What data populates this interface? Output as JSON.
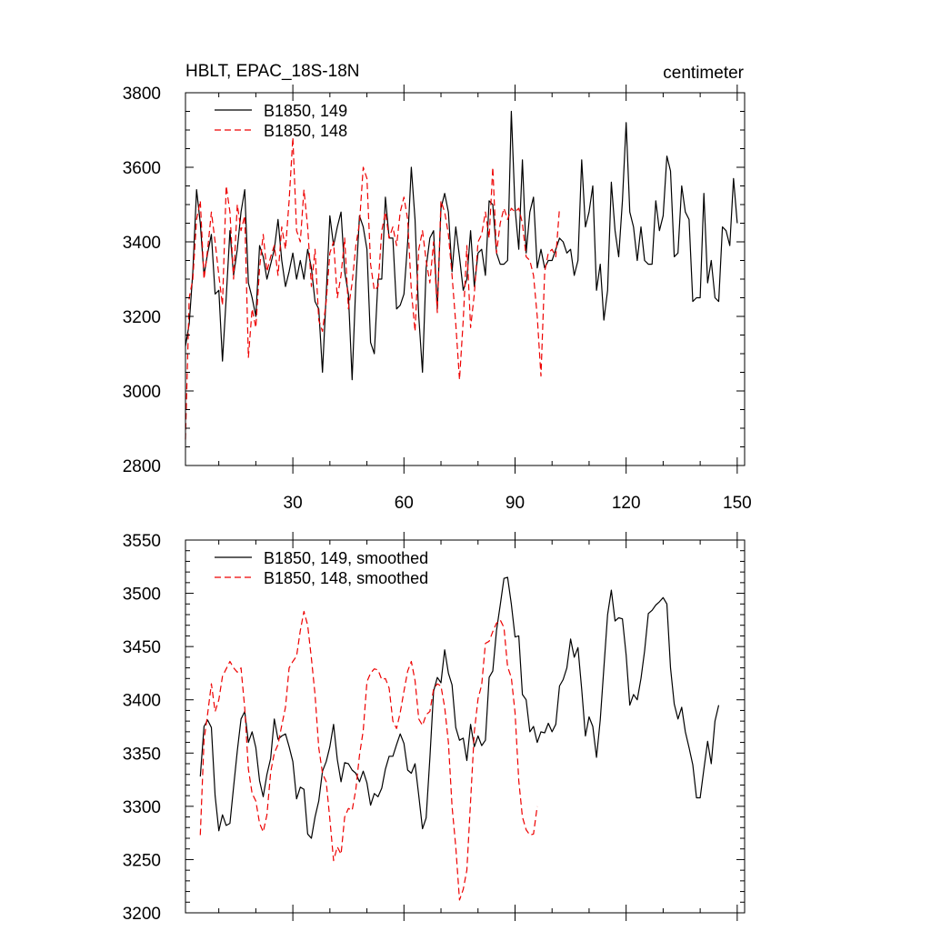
{
  "chart_data": [
    {
      "type": "line",
      "title_left": "HBLT, EPAC_18S-18N",
      "title_right": "centimeter",
      "xlim": [
        1,
        152
      ],
      "ylim": [
        2800,
        3800
      ],
      "x_ticks": [
        30,
        60,
        90,
        120,
        150
      ],
      "x_ticks_show_labels": true,
      "y_ticks": [
        2800,
        3000,
        3200,
        3400,
        3600,
        3800
      ],
      "y_minor_step": 50,
      "x_minor_step": 10,
      "legend": "top-left",
      "series": [
        {
          "name": "B1850, 149",
          "color": "#000000",
          "dash": "solid",
          "x_start": 1,
          "values": [
            3120,
            3180,
            3320,
            3540,
            3450,
            3310,
            3370,
            3420,
            3260,
            3270,
            3080,
            3250,
            3430,
            3310,
            3380,
            3480,
            3540,
            3290,
            3250,
            3200,
            3390,
            3360,
            3300,
            3340,
            3380,
            3460,
            3350,
            3280,
            3320,
            3370,
            3300,
            3350,
            3300,
            3380,
            3330,
            3240,
            3220,
            3050,
            3260,
            3470,
            3390,
            3440,
            3480,
            3320,
            3260,
            3030,
            3290,
            3470,
            3440,
            3380,
            3130,
            3100,
            3300,
            3300,
            3520,
            3410,
            3410,
            3220,
            3230,
            3260,
            3400,
            3600,
            3460,
            3200,
            3050,
            3330,
            3410,
            3430,
            3220,
            3490,
            3530,
            3480,
            3320,
            3440,
            3360,
            3270,
            3300,
            3430,
            3280,
            3370,
            3380,
            3310,
            3510,
            3500,
            3370,
            3340,
            3340,
            3350,
            3750,
            3490,
            3380,
            3620,
            3370,
            3480,
            3520,
            3330,
            3380,
            3330,
            3350,
            3350,
            3380,
            3410,
            3400,
            3370,
            3380,
            3310,
            3350,
            3620,
            3440,
            3480,
            3550,
            3270,
            3340,
            3190,
            3270,
            3560,
            3430,
            3360,
            3510,
            3720,
            3480,
            3440,
            3350,
            3440,
            3350,
            3340,
            3340,
            3510,
            3430,
            3470,
            3630,
            3590,
            3360,
            3370,
            3550,
            3480,
            3460,
            3240,
            3250,
            3250,
            3530,
            3290,
            3350,
            3250,
            3240,
            3440,
            3430,
            3390,
            3570,
            3450
          ]
        },
        {
          "name": "B1850, 148",
          "color": "#ee0000",
          "dash": "dashed",
          "x_start": 1,
          "values": [
            2870,
            3250,
            3300,
            3460,
            3510,
            3300,
            3380,
            3480,
            3400,
            3310,
            3230,
            3550,
            3480,
            3300,
            3500,
            3430,
            3470,
            3090,
            3220,
            3170,
            3330,
            3420,
            3320,
            3360,
            3390,
            3310,
            3440,
            3380,
            3510,
            3680,
            3430,
            3400,
            3540,
            3440,
            3280,
            3380,
            3190,
            3160,
            3240,
            3370,
            3400,
            3250,
            3310,
            3410,
            3220,
            3290,
            3390,
            3450,
            3600,
            3570,
            3340,
            3270,
            3280,
            3430,
            3480,
            3410,
            3440,
            3390,
            3480,
            3520,
            3460,
            3270,
            3160,
            3380,
            3430,
            3350,
            3290,
            3400,
            3210,
            3510,
            3480,
            3420,
            3310,
            3180,
            3030,
            3190,
            3390,
            3170,
            3260,
            3400,
            3420,
            3480,
            3410,
            3600,
            3370,
            3450,
            3490,
            3460,
            3490,
            3480,
            3490,
            3450,
            3360,
            3350,
            3310,
            3200,
            3040,
            3320,
            3370,
            3380,
            3360,
            3490
          ]
        }
      ]
    },
    {
      "type": "line",
      "xlim": [
        1,
        152
      ],
      "ylim": [
        3200,
        3550
      ],
      "x_ticks": [
        30,
        60,
        90,
        120,
        150
      ],
      "x_ticks_show_labels": false,
      "y_ticks": [
        3200,
        3250,
        3300,
        3350,
        3400,
        3450,
        3500,
        3550
      ],
      "y_minor_step": 10,
      "x_minor_step": 10,
      "legend": "top-left",
      "series": [
        {
          "name": "B1850, 149, smoothed",
          "color": "#000000",
          "dash": "solid",
          "x_start": 5,
          "values": [
            3328,
            3375,
            3381,
            3374,
            3310,
            3277,
            3292,
            3282,
            3284,
            3318,
            3352,
            3382,
            3389,
            3360,
            3370,
            3355,
            3324,
            3309,
            3330,
            3345,
            3382,
            3363,
            3366,
            3368,
            3356,
            3342,
            3307,
            3318,
            3316,
            3274,
            3270,
            3290,
            3305,
            3333,
            3342,
            3356,
            3377,
            3344,
            3323,
            3341,
            3340,
            3334,
            3331,
            3323,
            3333,
            3322,
            3301,
            3312,
            3309,
            3317,
            3335,
            3347,
            3347,
            3358,
            3368,
            3359,
            3334,
            3331,
            3340,
            3310,
            3279,
            3289,
            3345,
            3408,
            3421,
            3416,
            3447,
            3425,
            3414,
            3374,
            3362,
            3364,
            3343,
            3377,
            3356,
            3366,
            3357,
            3362,
            3421,
            3427,
            3465,
            3489,
            3514,
            3515,
            3490,
            3459,
            3460,
            3405,
            3400,
            3370,
            3375,
            3360,
            3370,
            3369,
            3378,
            3370,
            3377,
            3413,
            3419,
            3430,
            3457,
            3440,
            3449,
            3410,
            3366,
            3384,
            3375,
            3346,
            3381,
            3430,
            3480,
            3503,
            3474,
            3477,
            3476,
            3442,
            3395,
            3405,
            3400,
            3420,
            3446,
            3481,
            3484,
            3489,
            3492,
            3496,
            3490,
            3430,
            3396,
            3382,
            3393,
            3370,
            3355,
            3339,
            3308,
            3308,
            3335,
            3361,
            3340,
            3380,
            3395
          ]
        },
        {
          "name": "B1850, 148, smoothed",
          "color": "#ee0000",
          "dash": "dashed",
          "x_start": 5,
          "values": [
            3273,
            3362,
            3387,
            3415,
            3389,
            3400,
            3422,
            3429,
            3436,
            3430,
            3426,
            3430,
            3392,
            3335,
            3312,
            3305,
            3284,
            3276,
            3292,
            3332,
            3350,
            3358,
            3376,
            3393,
            3430,
            3436,
            3441,
            3465,
            3483,
            3470,
            3439,
            3405,
            3355,
            3331,
            3323,
            3288,
            3249,
            3262,
            3255,
            3290,
            3298,
            3296,
            3316,
            3348,
            3371,
            3417,
            3425,
            3429,
            3428,
            3419,
            3420,
            3411,
            3380,
            3373,
            3388,
            3408,
            3427,
            3436,
            3418,
            3382,
            3376,
            3386,
            3389,
            3410,
            3415,
            3413,
            3393,
            3360,
            3300,
            3262,
            3212,
            3222,
            3240,
            3305,
            3370,
            3401,
            3414,
            3453,
            3455,
            3464,
            3472,
            3475,
            3468,
            3431,
            3421,
            3388,
            3324,
            3290,
            3278,
            3273,
            3274,
            3300
          ]
        }
      ]
    }
  ]
}
